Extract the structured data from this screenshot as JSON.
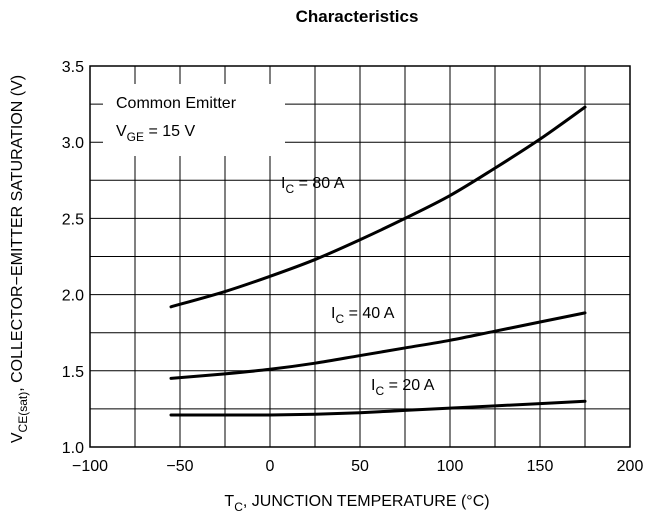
{
  "chart_data": {
    "type": "line",
    "title": "Characteristics",
    "xlabel": {
      "main": "T",
      "sub": "C",
      "rest": ", JUNCTION TEMPERATURE (°C)"
    },
    "ylabel": {
      "main": "V",
      "sub": "CE(sat)",
      "rest": ", COLLECTOR−EMITTER SATURATION (V)"
    },
    "xlim": [
      -100,
      200
    ],
    "ylim": [
      1.0,
      3.5
    ],
    "x_ticks": [
      -100,
      -50,
      0,
      50,
      100,
      150,
      200
    ],
    "x_tick_labels": [
      "−100",
      "−50",
      "0",
      "50",
      "100",
      "150",
      "200"
    ],
    "y_ticks": [
      1.0,
      1.5,
      2.0,
      2.5,
      3.0,
      3.5
    ],
    "y_tick_labels": [
      "1.0",
      "1.5",
      "2.0",
      "2.5",
      "3.0",
      "3.5"
    ],
    "x_minor_step": 25,
    "y_minor_step": 0.25,
    "grid": true,
    "legend_box": {
      "line1": "Common Emitter",
      "line2_main": "V",
      "line2_sub": "GE",
      "line2_rest": " = 15 V"
    },
    "series": [
      {
        "label_main": "I",
        "label_sub": "C",
        "label_rest": " = 80 A",
        "x": [
          -55,
          -25,
          0,
          25,
          50,
          75,
          100,
          125,
          150,
          175
        ],
        "y": [
          1.92,
          2.02,
          2.12,
          2.23,
          2.36,
          2.5,
          2.65,
          2.83,
          3.02,
          3.23
        ]
      },
      {
        "label_main": "I",
        "label_sub": "C",
        "label_rest": " = 40 A",
        "x": [
          -55,
          -25,
          0,
          25,
          50,
          75,
          100,
          125,
          150,
          175
        ],
        "y": [
          1.45,
          1.48,
          1.51,
          1.55,
          1.6,
          1.65,
          1.7,
          1.76,
          1.82,
          1.88
        ]
      },
      {
        "label_main": "I",
        "label_sub": "C",
        "label_rest": " = 20 A",
        "x": [
          -55,
          -25,
          0,
          25,
          50,
          75,
          100,
          125,
          150,
          175
        ],
        "y": [
          1.21,
          1.21,
          1.21,
          1.215,
          1.225,
          1.24,
          1.255,
          1.27,
          1.285,
          1.3
        ]
      }
    ]
  }
}
